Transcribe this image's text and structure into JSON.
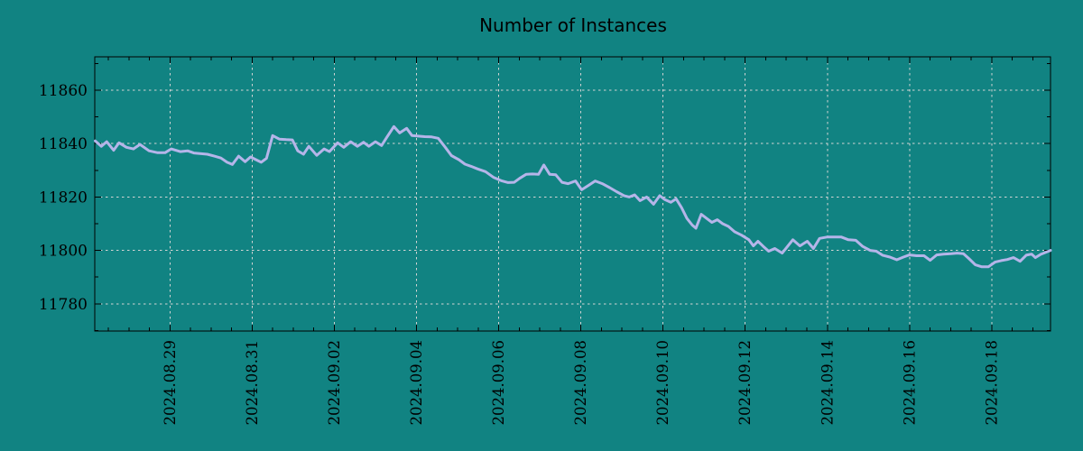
{
  "colors": {
    "background": "#118382",
    "line": "#b5b5e9",
    "grid": "#d4d4d4",
    "axis": "#000000",
    "text": "#000000"
  },
  "chart_data": {
    "type": "line",
    "title": "Number of Instances",
    "xlabel": "",
    "ylabel": "",
    "x_unit": "days since 2024-08-27 00:00",
    "xlim": [
      0.17,
      23.43
    ],
    "ylim": [
      11769.8,
      11872.5
    ],
    "grid": true,
    "legend_position": "none",
    "x_ticks": [
      {
        "day": 2,
        "label": "2024.08.29"
      },
      {
        "day": 4,
        "label": "2024.08.31"
      },
      {
        "day": 6,
        "label": "2024.09.02"
      },
      {
        "day": 8,
        "label": "2024.09.04"
      },
      {
        "day": 10,
        "label": "2024.09.06"
      },
      {
        "day": 12,
        "label": "2024.09.08"
      },
      {
        "day": 14,
        "label": "2024.09.10"
      },
      {
        "day": 16,
        "label": "2024.09.12"
      },
      {
        "day": 18,
        "label": "2024.09.14"
      },
      {
        "day": 20,
        "label": "2024.09.16"
      },
      {
        "day": 22,
        "label": "2024.09.18"
      }
    ],
    "x_minor_step_days": 0.5,
    "y_ticks": [
      11780,
      11800,
      11820,
      11840,
      11860
    ],
    "y_minor_step": 10,
    "series": [
      {
        "name": "instances",
        "points": [
          [
            0.18,
            11841
          ],
          [
            0.33,
            11839
          ],
          [
            0.46,
            11840.7
          ],
          [
            0.63,
            11837.5
          ],
          [
            0.76,
            11840.3
          ],
          [
            0.94,
            11838.6
          ],
          [
            1.11,
            11838
          ],
          [
            1.27,
            11839.7
          ],
          [
            1.49,
            11837.3
          ],
          [
            1.7,
            11836.6
          ],
          [
            1.88,
            11836.6
          ],
          [
            2.03,
            11838
          ],
          [
            2.25,
            11837
          ],
          [
            2.43,
            11837.3
          ],
          [
            2.58,
            11836.5
          ],
          [
            2.73,
            11836.3
          ],
          [
            2.91,
            11836
          ],
          [
            3.08,
            11835.3
          ],
          [
            3.24,
            11834.6
          ],
          [
            3.39,
            11833
          ],
          [
            3.52,
            11832.2
          ],
          [
            3.67,
            11835.3
          ],
          [
            3.83,
            11833.2
          ],
          [
            3.96,
            11835
          ],
          [
            4.09,
            11834
          ],
          [
            4.22,
            11833
          ],
          [
            4.35,
            11834.5
          ],
          [
            4.5,
            11843
          ],
          [
            4.66,
            11841.7
          ],
          [
            4.83,
            11841.5
          ],
          [
            4.98,
            11841.4
          ],
          [
            5.11,
            11837.3
          ],
          [
            5.25,
            11836
          ],
          [
            5.38,
            11839
          ],
          [
            5.57,
            11835.6
          ],
          [
            5.75,
            11838
          ],
          [
            5.88,
            11837
          ],
          [
            6.08,
            11840.3
          ],
          [
            6.23,
            11838.6
          ],
          [
            6.4,
            11840.7
          ],
          [
            6.56,
            11839
          ],
          [
            6.71,
            11840.5
          ],
          [
            6.84,
            11839
          ],
          [
            7.0,
            11840.7
          ],
          [
            7.15,
            11839.3
          ],
          [
            7.28,
            11842.4
          ],
          [
            7.45,
            11846.4
          ],
          [
            7.59,
            11844
          ],
          [
            7.76,
            11845.7
          ],
          [
            7.89,
            11843
          ],
          [
            8.04,
            11842.8
          ],
          [
            8.2,
            11842.6
          ],
          [
            8.37,
            11842.5
          ],
          [
            8.53,
            11842
          ],
          [
            8.7,
            11838.6
          ],
          [
            8.85,
            11835.5
          ],
          [
            9.03,
            11834
          ],
          [
            9.18,
            11832.3
          ],
          [
            9.33,
            11831.5
          ],
          [
            9.49,
            11830.5
          ],
          [
            9.68,
            11829.5
          ],
          [
            9.88,
            11827.3
          ],
          [
            10.06,
            11826.1
          ],
          [
            10.23,
            11825.4
          ],
          [
            10.38,
            11825.5
          ],
          [
            10.51,
            11827
          ],
          [
            10.67,
            11828.5
          ],
          [
            10.82,
            11828.6
          ],
          [
            10.97,
            11828.5
          ],
          [
            11.1,
            11832
          ],
          [
            11.24,
            11828.5
          ],
          [
            11.39,
            11828.3
          ],
          [
            11.54,
            11825.5
          ],
          [
            11.69,
            11825
          ],
          [
            11.87,
            11826
          ],
          [
            12.02,
            11822.7
          ],
          [
            12.2,
            11824.5
          ],
          [
            12.35,
            11826
          ],
          [
            12.52,
            11825
          ],
          [
            12.7,
            11823.5
          ],
          [
            12.87,
            11822
          ],
          [
            13.05,
            11820.5
          ],
          [
            13.18,
            11820
          ],
          [
            13.31,
            11820.8
          ],
          [
            13.44,
            11818.6
          ],
          [
            13.6,
            11820
          ],
          [
            13.77,
            11817.3
          ],
          [
            13.92,
            11820.5
          ],
          [
            14.05,
            11819
          ],
          [
            14.19,
            11818
          ],
          [
            14.32,
            11819.3
          ],
          [
            14.45,
            11816
          ],
          [
            14.58,
            11812
          ],
          [
            14.71,
            11809.5
          ],
          [
            14.8,
            11808.3
          ],
          [
            14.93,
            11813.5
          ],
          [
            15.06,
            11812
          ],
          [
            15.19,
            11810.5
          ],
          [
            15.32,
            11811.5
          ],
          [
            15.45,
            11810
          ],
          [
            15.59,
            11809
          ],
          [
            15.74,
            11807
          ],
          [
            15.91,
            11805.7
          ],
          [
            16.09,
            11804
          ],
          [
            16.2,
            11801.7
          ],
          [
            16.31,
            11803.4
          ],
          [
            16.44,
            11801.5
          ],
          [
            16.57,
            11799.7
          ],
          [
            16.72,
            11800.7
          ],
          [
            16.9,
            11799
          ],
          [
            17.03,
            11801.5
          ],
          [
            17.16,
            11804
          ],
          [
            17.33,
            11801.7
          ],
          [
            17.51,
            11803.4
          ],
          [
            17.66,
            11800.7
          ],
          [
            17.81,
            11804.5
          ],
          [
            17.99,
            11805
          ],
          [
            18.16,
            11805
          ],
          [
            18.34,
            11805
          ],
          [
            18.51,
            11804
          ],
          [
            18.69,
            11803.8
          ],
          [
            18.86,
            11801.5
          ],
          [
            19.04,
            11800
          ],
          [
            19.19,
            11799.7
          ],
          [
            19.34,
            11798.2
          ],
          [
            19.52,
            11797.5
          ],
          [
            19.69,
            11796.5
          ],
          [
            19.85,
            11797.5
          ],
          [
            20.0,
            11798.3
          ],
          [
            20.17,
            11798
          ],
          [
            20.35,
            11798
          ],
          [
            20.5,
            11796.3
          ],
          [
            20.66,
            11798.3
          ],
          [
            20.83,
            11798.6
          ],
          [
            21.01,
            11798.8
          ],
          [
            21.16,
            11799
          ],
          [
            21.31,
            11798.8
          ],
          [
            21.44,
            11797
          ],
          [
            21.6,
            11794.6
          ],
          [
            21.75,
            11793.9
          ],
          [
            21.92,
            11793.9
          ],
          [
            22.08,
            11795.6
          ],
          [
            22.23,
            11796.2
          ],
          [
            22.38,
            11796.6
          ],
          [
            22.53,
            11797.3
          ],
          [
            22.69,
            11795.9
          ],
          [
            22.84,
            11798.2
          ],
          [
            22.97,
            11798.6
          ],
          [
            23.06,
            11797.3
          ],
          [
            23.19,
            11798.5
          ],
          [
            23.43,
            11800
          ]
        ]
      }
    ]
  }
}
